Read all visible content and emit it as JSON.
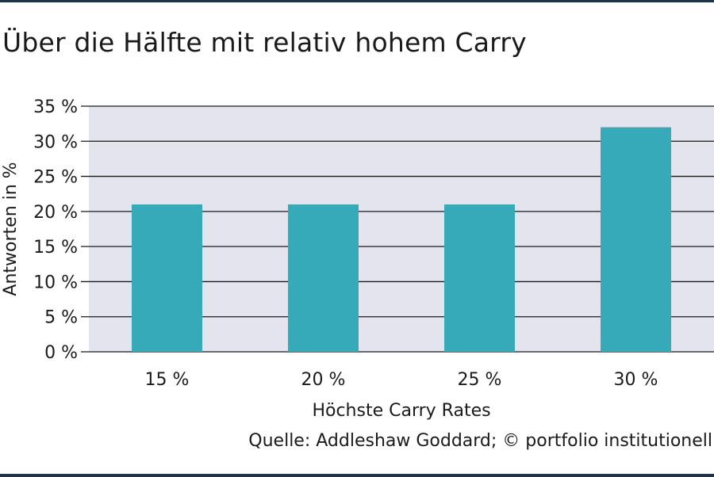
{
  "title": "Über die Hälfte mit relativ hohem Carry",
  "source": "Quelle: Addleshaw Goddard; © portfolio institutionell",
  "colors": {
    "bar": "#36aab8",
    "plot_background": "#e4e4ee",
    "grid": "#1a1a1a",
    "rule": "#1f3447"
  },
  "chart_data": {
    "type": "bar",
    "categories": [
      "15 %",
      "20 %",
      "25 %",
      "30 %"
    ],
    "values": [
      21,
      21,
      21,
      32
    ],
    "xlabel": "Höchste Carry Rates",
    "ylabel": "Antworten in %",
    "ylim": [
      0,
      35
    ],
    "yticks": [
      0,
      5,
      10,
      15,
      20,
      25,
      30,
      35
    ],
    "ytick_labels": [
      "0 %",
      "5 %",
      "10 %",
      "15 %",
      "20 %",
      "25 %",
      "30 %",
      "35 %"
    ],
    "grid": true,
    "legend": false
  }
}
